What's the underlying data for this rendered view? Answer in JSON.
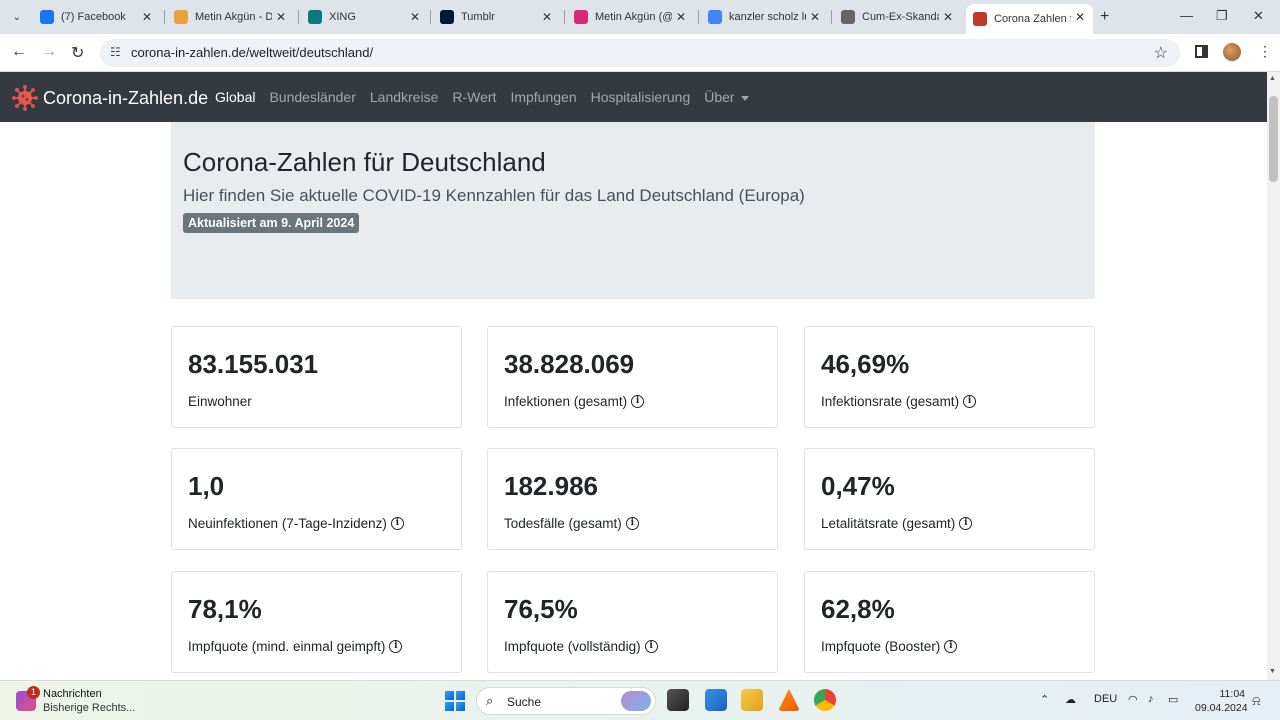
{
  "browser": {
    "tabs": [
      {
        "title": "(7) Facebook",
        "icon": "facebook-icon",
        "color": "#1877f2"
      },
      {
        "title": "Metin Akgün - D",
        "icon": "profile-site-icon",
        "color": "#e8a33d"
      },
      {
        "title": "XING",
        "icon": "xing-icon",
        "color": "#0a7a7a"
      },
      {
        "title": "Tumblr",
        "icon": "tumblr-icon",
        "color": "#001935"
      },
      {
        "title": "Metin Akgün (@",
        "icon": "instagram-icon",
        "color": "#d62976"
      },
      {
        "title": "kanzler scholz lu",
        "icon": "google-icon",
        "color": "#4285f4"
      },
      {
        "title": "Cum-Ex-Skandal",
        "icon": "wikipedia-icon",
        "color": "#666666"
      },
      {
        "title": "Corona Zahlen fü",
        "icon": "corona-virus-icon",
        "color": "#c0392b",
        "active": true
      }
    ],
    "url": "corona-in-zahlen.de/weltweit/deutschland/"
  },
  "site": {
    "brand": "Corona-in-Zahlen.de",
    "nav": [
      "Global",
      "Bundesländer",
      "Landkreise",
      "R-Wert",
      "Impfungen",
      "Hospitalisierung",
      "Über"
    ]
  },
  "hero": {
    "title": "Corona-Zahlen für Deutschland",
    "subtitle": "Hier finden Sie aktuelle COVID-19 Kennzahlen für das Land Deutschland (Europa)",
    "badge": "Aktualisiert am 9. April 2024"
  },
  "cards": [
    {
      "value": "83.155.031",
      "label": "Einwohner",
      "info": false
    },
    {
      "value": "38.828.069",
      "label": "Infektionen (gesamt)",
      "info": true
    },
    {
      "value": "46,69%",
      "label": "Infektionsrate (gesamt)",
      "info": true
    },
    {
      "value": "1,0",
      "label": "Neuinfektionen (7-Tage-Inzidenz)",
      "info": true
    },
    {
      "value": "182.986",
      "label": "Todesfälle (gesamt)",
      "info": true
    },
    {
      "value": "0,47%",
      "label": "Letalitätsrate (gesamt)",
      "info": true
    },
    {
      "value": "78,1%",
      "label": "Impfquote (mind. einmal geimpft)",
      "info": true
    },
    {
      "value": "76,5%",
      "label": "Impfquote (vollständig)",
      "info": true
    },
    {
      "value": "62,8%",
      "label": "Impfquote (Booster)",
      "info": true
    }
  ],
  "taskbar": {
    "notification_count": "1",
    "notification_title": "Nachrichten",
    "notification_sub": "Bisherige Rechts...",
    "search_placeholder": "Suche",
    "language": "DEU",
    "time": "11:04",
    "date": "09.04.2024"
  }
}
